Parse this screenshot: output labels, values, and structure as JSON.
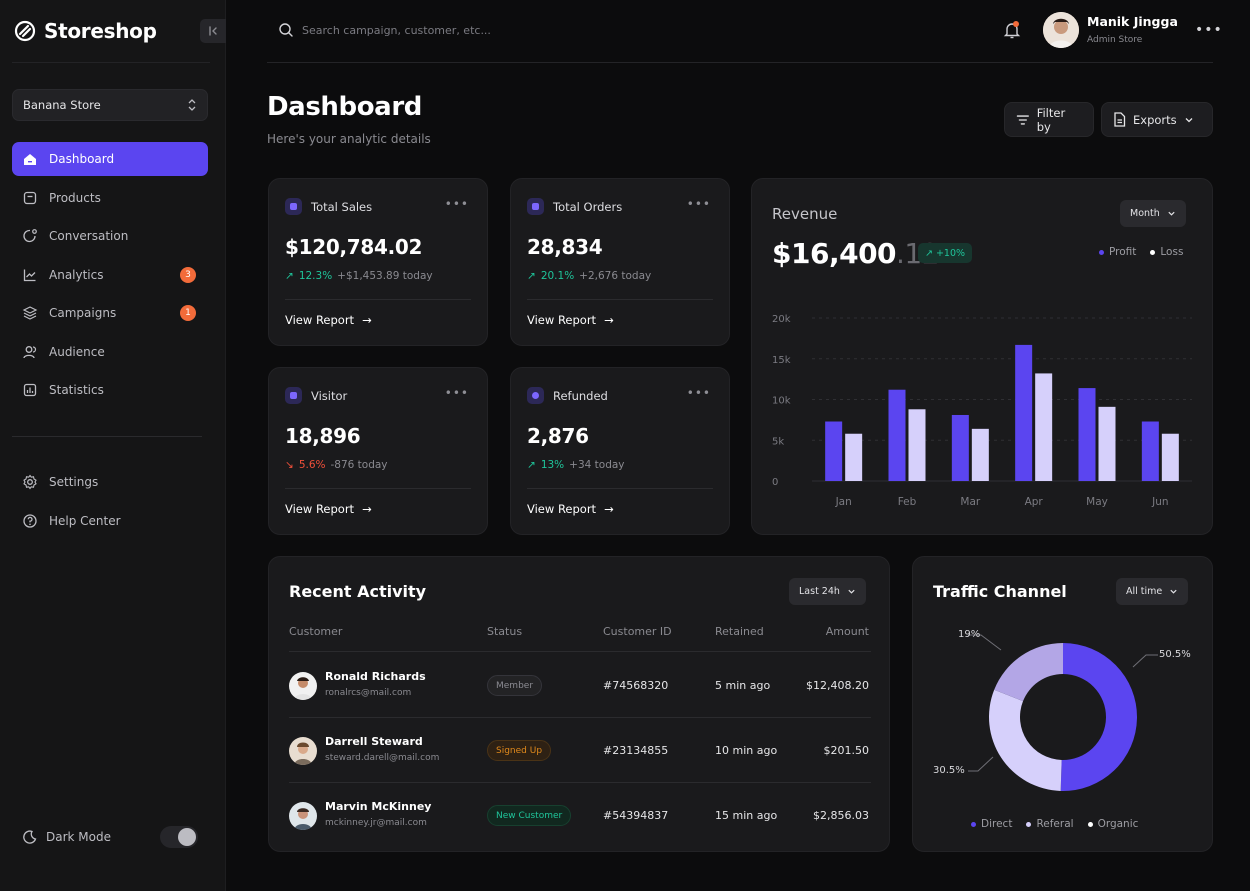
{
  "brand": {
    "name": "Storeshop"
  },
  "store_selector": {
    "value": "Banana Store"
  },
  "nav": [
    {
      "label": "Dashboard",
      "icon": "home-icon",
      "active": true
    },
    {
      "label": "Products",
      "icon": "box-icon"
    },
    {
      "label": "Conversation",
      "icon": "chat-icon"
    },
    {
      "label": "Analytics",
      "icon": "chart-line-icon",
      "badge": "3"
    },
    {
      "label": "Campaigns",
      "icon": "layers-icon",
      "badge": "1"
    },
    {
      "label": "Audience",
      "icon": "users-icon"
    },
    {
      "label": "Statistics",
      "icon": "bar-chart-icon"
    }
  ],
  "nav_secondary": [
    {
      "label": "Settings",
      "icon": "gear-icon"
    },
    {
      "label": "Help Center",
      "icon": "help-icon"
    }
  ],
  "dark_mode": {
    "label": "Dark Mode",
    "enabled": true
  },
  "search": {
    "placeholder": "Search campaign, customer, etc..."
  },
  "user": {
    "name": "Manik Jingga",
    "role": "Admin Store"
  },
  "page": {
    "title": "Dashboard",
    "subtitle": "Here's your analytic details"
  },
  "actions": {
    "filter_label": "Filter by",
    "export_label": "Exports"
  },
  "stats": [
    {
      "title": "Total Sales",
      "value": "$120,784.02",
      "change": "12.3%",
      "direction": "up",
      "today": "+$1,453.89 today",
      "link": "View Report"
    },
    {
      "title": "Total Orders",
      "value": "28,834",
      "change": "20.1%",
      "direction": "up",
      "today": "+2,676 today",
      "link": "View Report"
    },
    {
      "title": "Visitor",
      "value": "18,896",
      "change": "5.6%",
      "direction": "down",
      "today": "-876 today",
      "link": "View Report"
    },
    {
      "title": "Refunded",
      "value": "2,876",
      "change": "13%",
      "direction": "up",
      "today": "+34 today",
      "link": "View Report"
    }
  ],
  "revenue": {
    "title": "Revenue",
    "value_main": "$16,400",
    "value_cents": ".12",
    "change": "+10%",
    "period": "Month",
    "legend_profit": "Profit",
    "legend_loss": "Loss"
  },
  "recent_activity": {
    "title": "Recent Activity",
    "period": "Last 24h",
    "headers": {
      "customer": "Customer",
      "status": "Status",
      "id": "Customer ID",
      "retained": "Retained",
      "amount": "Amount"
    },
    "rows": [
      {
        "name": "Ronald Richards",
        "email": "ronalrcs@mail.com",
        "status": "Member",
        "id": "#74568320",
        "retained": "5 min ago",
        "amount": "$12,408.20"
      },
      {
        "name": "Darrell Steward",
        "email": "steward.darell@mail.com",
        "status": "Signed Up",
        "id": "#23134855",
        "retained": "10 min ago",
        "amount": "$201.50"
      },
      {
        "name": "Marvin McKinney",
        "email": "mckinney.jr@mail.com",
        "status": "New Customer",
        "id": "#54394837",
        "retained": "15 min ago",
        "amount": "$2,856.03"
      }
    ]
  },
  "traffic": {
    "title": "Traffic Channel",
    "period": "All time",
    "labels": {
      "direct": "50.5%",
      "referal": "30.5%",
      "organic": "19%"
    },
    "legend": {
      "direct": "Direct",
      "referal": "Referal",
      "organic": "Organic"
    }
  },
  "colors": {
    "accent": "#5b45f0",
    "accent_light": "#d6d0fb",
    "up": "#1fc49a",
    "down": "#f2503a",
    "badge": "#f26b3a"
  },
  "chart_data": [
    {
      "type": "bar",
      "categories": [
        "Jan",
        "Feb",
        "Mar",
        "Apr",
        "May",
        "Jun"
      ],
      "series": [
        {
          "name": "Profit",
          "values": [
            7300,
            11200,
            8100,
            16700,
            11400,
            7300
          ]
        },
        {
          "name": "Loss",
          "values": [
            5800,
            8800,
            6400,
            13200,
            9100,
            5800
          ]
        }
      ],
      "ytick_labels": [
        "20k",
        "15k",
        "10k",
        "5k",
        "0"
      ],
      "ylim": [
        0,
        20000
      ]
    },
    {
      "type": "pie",
      "categories": [
        "Direct",
        "Referal",
        "Organic"
      ],
      "values": [
        50.5,
        30.5,
        19
      ]
    }
  ]
}
